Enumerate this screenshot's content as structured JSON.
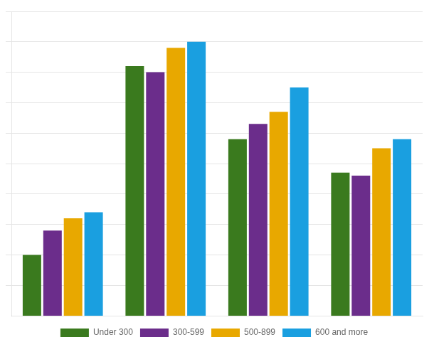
{
  "chart_data": {
    "type": "bar",
    "categories": [
      null,
      null,
      null,
      null
    ],
    "series": [
      {
        "name": "Under 300",
        "color": "#3a7a1e",
        "values": [
          20,
          82,
          58,
          47
        ]
      },
      {
        "name": "300-599",
        "color": "#6b2d8b",
        "values": [
          28,
          80,
          63,
          46
        ]
      },
      {
        "name": "500-899",
        "color": "#e8a800",
        "values": [
          32,
          88,
          67,
          55
        ]
      },
      {
        "name": "600 and more",
        "color": "#1a9fe0",
        "values": [
          34,
          90,
          75,
          58
        ]
      }
    ],
    "ylim": [
      0,
      100
    ],
    "yticks": [
      10,
      20,
      30,
      40,
      50,
      60,
      70,
      80,
      90,
      100
    ],
    "grid": true,
    "tick_labels": false,
    "legend": "bottom"
  }
}
